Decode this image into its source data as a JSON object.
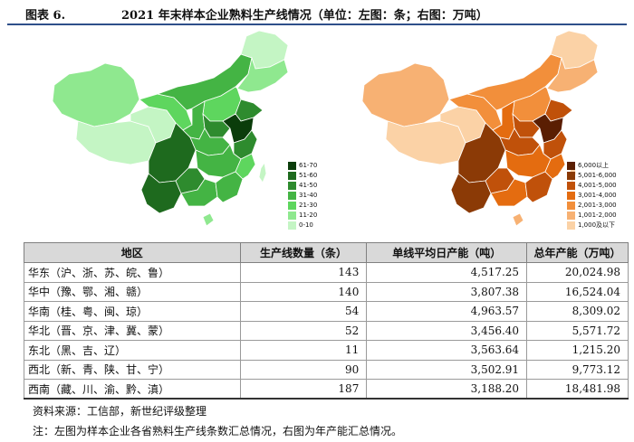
{
  "header": {
    "figure_label": "图表 6.",
    "title": "2021 年末样本企业熟料生产线情况（单位：左图：条；右图：万吨）"
  },
  "left_map": {
    "legend": [
      {
        "label": "61-70",
        "color": "#0b3d0b"
      },
      {
        "label": "51-60",
        "color": "#1e6a1e"
      },
      {
        "label": "41-50",
        "color": "#2e8b2e"
      },
      {
        "label": "31-40",
        "color": "#44b444"
      },
      {
        "label": "21-30",
        "color": "#5ed65e"
      },
      {
        "label": "11-20",
        "color": "#8fe88f"
      },
      {
        "label": "0-10",
        "color": "#c4f5c4"
      }
    ]
  },
  "right_map": {
    "legend": [
      {
        "label": "6,000以上",
        "color": "#5a1e02"
      },
      {
        "label": "5,001-6,000",
        "color": "#8b3a06"
      },
      {
        "label": "4,001-5,000",
        "color": "#c0510a"
      },
      {
        "label": "3,001-4,000",
        "color": "#e46c10"
      },
      {
        "label": "2,001-3,000",
        "color": "#f28f3b"
      },
      {
        "label": "1,001-2,000",
        "color": "#f7b173"
      },
      {
        "label": "1,000及以下",
        "color": "#fbd2a6"
      }
    ]
  },
  "table": {
    "headers": [
      "地区",
      "生产线数量（条）",
      "单线平均日产能（吨）",
      "总年产能（万吨）"
    ],
    "rows": [
      {
        "region": "华东（沪、浙、苏、皖、鲁）",
        "lines": "143",
        "avg_daily": "4,517.25",
        "annual": "20,024.98"
      },
      {
        "region": "华中（豫、鄂、湘、赣）",
        "lines": "140",
        "avg_daily": "3,807.38",
        "annual": "16,524.04"
      },
      {
        "region": "华南（桂、粤、闽、琼）",
        "lines": "54",
        "avg_daily": "4,963.57",
        "annual": "8,309.02"
      },
      {
        "region": "华北（晋、京、津、冀、蒙）",
        "lines": "52",
        "avg_daily": "3,456.40",
        "annual": "5,571.72"
      },
      {
        "region": "东北（黑、吉、辽）",
        "lines": "11",
        "avg_daily": "3,563.64",
        "annual": "1,215.20"
      },
      {
        "region": "西北（新、青、陕、甘、宁）",
        "lines": "90",
        "avg_daily": "3,502.91",
        "annual": "9,773.12"
      },
      {
        "region": "西南（藏、川、渝、黔、滇）",
        "lines": "187",
        "avg_daily": "3,188.20",
        "annual": "18,481.98"
      }
    ]
  },
  "notes": {
    "source": "资料来源：工信部，新世纪评级整理",
    "note": "注：左图为样本企业各省熟料生产线条数汇总情况，右图为年产能汇总情况。"
  }
}
